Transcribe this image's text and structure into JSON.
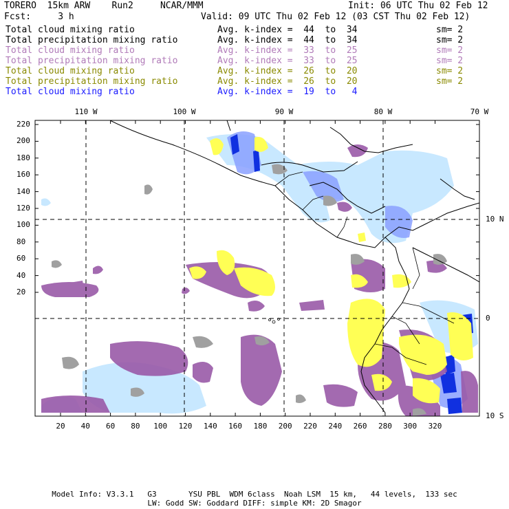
{
  "header": {
    "title": "TORERO  15km ARW    Run2     NCAR/MMM",
    "init": "Init: 06 UTC Thu 02 Feb 12",
    "fcst": "Fcst:     3 h",
    "valid": "Valid: 09 UTC Thu 02 Feb 12 (03 CST Thu 02 Feb 12)"
  },
  "legend": [
    {
      "field": "Total cloud mixing ratio",
      "index": "Avg. k-index =  44  to  34",
      "sm": "sm= 2",
      "color": "#000000"
    },
    {
      "field": "Total precipitation mixing ratio",
      "index": "Avg. k-index =  44  to  34",
      "sm": "sm= 2",
      "color": "#000000"
    },
    {
      "field": "Total cloud mixing ratio",
      "index": "Avg. k-index =  33  to  25",
      "sm": "sm= 2",
      "color": "#b07ab8"
    },
    {
      "field": "Total precipitation mixing ratio",
      "index": "Avg. k-index =  33  to  25",
      "sm": "sm= 2",
      "color": "#b07ab8"
    },
    {
      "field": "Total cloud mixing ratio",
      "index": "Avg. k-index =  26  to  20",
      "sm": "sm= 2",
      "color": "#8a8a00"
    },
    {
      "field": "Total precipitation mixing ratio",
      "index": "Avg. k-index =  26  to  20",
      "sm": "sm= 2",
      "color": "#8a8a00"
    },
    {
      "field": "Total cloud mixing ratio",
      "index": "Avg. k-index =  19  to   4",
      "sm": "",
      "color": "#1a1aff"
    }
  ],
  "map": {
    "lon_labels": [
      "110 W",
      "100 W",
      "90 W",
      "80 W",
      "70 W"
    ],
    "lat_labels": [
      "10 N",
      "0",
      "10 S"
    ],
    "y_ticks": [
      "220",
      "200",
      "180",
      "160",
      "140",
      "120",
      "100",
      "80",
      "60",
      "40",
      "20"
    ],
    "x_ticks": [
      "20",
      "40",
      "60",
      "80",
      "100",
      "120",
      "140",
      "160",
      "180",
      "200",
      "220",
      "240",
      "260",
      "280",
      "300",
      "320"
    ],
    "colors": {
      "purple": "#9a5aa8",
      "yellow": "#ffff55",
      "gray": "#a0a0a0",
      "lightblue": "#c8e8ff",
      "blue": "#8aa0ff",
      "darkblue": "#1030e0"
    }
  },
  "footer": {
    "line1": "Model Info: V3.3.1   G3       YSU PBL  WDM 6class  Noah LSM  15 km,   44 levels,  133 sec",
    "line2": "LW: Godd SW: Goddard DIFF: simple KM: 2D Smagor"
  }
}
